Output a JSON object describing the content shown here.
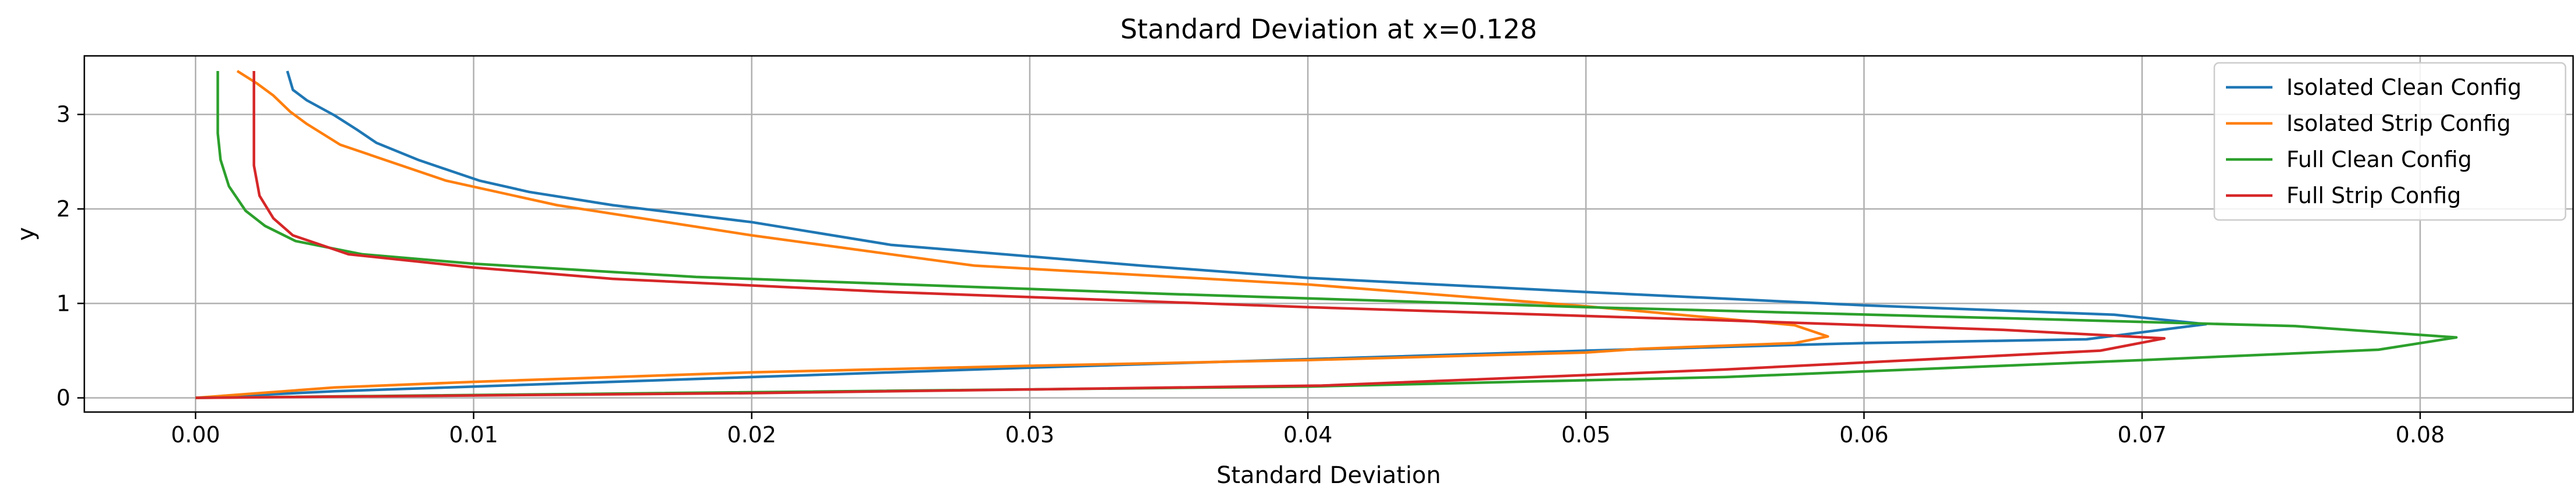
{
  "chart_data": {
    "type": "line",
    "title": "Standard Deviation at x=0.128",
    "xlabel": "Standard Deviation",
    "ylabel": "y",
    "xlim": [
      -0.004,
      0.0855
    ],
    "ylim": [
      -0.15,
      3.62
    ],
    "xticks": [
      0.0,
      0.01,
      0.02,
      0.03,
      0.04,
      0.05,
      0.06,
      0.07,
      0.08
    ],
    "xtick_labels": [
      "0.00",
      "0.01",
      "0.02",
      "0.03",
      "0.04",
      "0.05",
      "0.06",
      "0.07",
      "0.08"
    ],
    "yticks": [
      0,
      1,
      2,
      3
    ],
    "ytick_labels": [
      "0",
      "1",
      "2",
      "3"
    ],
    "grid": true,
    "legend_position": "top-right",
    "series": [
      {
        "name": "Isolated Clean Config",
        "color": "#1f77b4",
        "x": [
          0.0,
          0.005,
          0.01,
          0.02,
          0.03,
          0.04,
          0.05,
          0.06,
          0.068,
          0.0723,
          0.069,
          0.06,
          0.05,
          0.04,
          0.034,
          0.025,
          0.02,
          0.015,
          0.012,
          0.0102,
          0.008,
          0.0065,
          0.0058,
          0.005,
          0.004,
          0.0035,
          0.0034,
          0.0033
        ],
        "y": [
          0.0,
          0.07,
          0.12,
          0.22,
          0.32,
          0.41,
          0.5,
          0.58,
          0.62,
          0.78,
          0.88,
          0.98,
          1.12,
          1.27,
          1.4,
          1.62,
          1.86,
          2.04,
          2.18,
          2.3,
          2.52,
          2.7,
          2.84,
          2.99,
          3.15,
          3.26,
          3.36,
          3.46
        ]
      },
      {
        "name": "Isolated Strip Config",
        "color": "#ff7f0e",
        "x": [
          0.0,
          0.005,
          0.01,
          0.02,
          0.03,
          0.04,
          0.05,
          0.052,
          0.0575,
          0.0587,
          0.0575,
          0.05,
          0.04,
          0.028,
          0.02,
          0.013,
          0.009,
          0.0065,
          0.0052,
          0.004,
          0.0034,
          0.0028,
          0.0022,
          0.0015
        ],
        "y": [
          0.0,
          0.11,
          0.17,
          0.27,
          0.34,
          0.4,
          0.48,
          0.52,
          0.58,
          0.65,
          0.77,
          0.97,
          1.2,
          1.4,
          1.72,
          2.04,
          2.3,
          2.55,
          2.68,
          2.9,
          3.03,
          3.2,
          3.33,
          3.46
        ]
      },
      {
        "name": "Full Clean Config",
        "color": "#2ca02c",
        "x": [
          0.0,
          0.04,
          0.055,
          0.07,
          0.0785,
          0.0813,
          0.0755,
          0.068,
          0.05,
          0.035,
          0.018,
          0.01,
          0.006,
          0.0036,
          0.0025,
          0.0018,
          0.0012,
          0.0009,
          0.0008,
          0.0008
        ],
        "y": [
          0.0,
          0.12,
          0.22,
          0.4,
          0.51,
          0.64,
          0.76,
          0.82,
          0.96,
          1.1,
          1.28,
          1.42,
          1.52,
          1.66,
          1.82,
          1.98,
          2.24,
          2.52,
          2.8,
          3.46
        ]
      },
      {
        "name": "Full Strip Config",
        "color": "#d62728",
        "x": [
          0.0,
          0.02,
          0.0405,
          0.055,
          0.0685,
          0.0708,
          0.065,
          0.055,
          0.04,
          0.025,
          0.015,
          0.01,
          0.0055,
          0.0035,
          0.0028,
          0.0023,
          0.0021,
          0.0021,
          0.0021,
          0.0021
        ],
        "y": [
          0.0,
          0.05,
          0.13,
          0.3,
          0.5,
          0.63,
          0.72,
          0.82,
          0.96,
          1.12,
          1.26,
          1.38,
          1.52,
          1.72,
          1.9,
          2.14,
          2.46,
          2.78,
          3.1,
          3.46
        ]
      }
    ]
  }
}
